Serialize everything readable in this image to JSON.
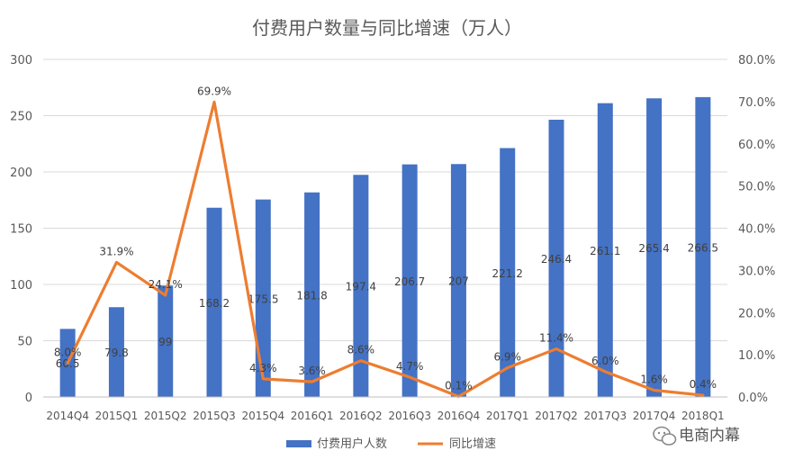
{
  "chart_data": {
    "type": "bar",
    "title": "付费用户数量与同比增速（万人）",
    "categories": [
      "2014Q4",
      "2015Q1",
      "2015Q2",
      "2015Q3",
      "2015Q4",
      "2016Q1",
      "2016Q2",
      "2016Q3",
      "2016Q4",
      "2017Q1",
      "2017Q2",
      "2017Q3",
      "2017Q4",
      "2018Q1"
    ],
    "series": [
      {
        "name": "付费用户人数",
        "type": "bar",
        "axis": "left",
        "color": "#4472C4",
        "values": [
          60.5,
          79.8,
          99,
          168.2,
          175.5,
          181.8,
          197.4,
          206.7,
          207,
          221.2,
          246.4,
          261.1,
          265.4,
          266.5
        ],
        "labels": [
          "60.5",
          "79.8",
          "99",
          "168.2",
          "175.5",
          "181.8",
          "197.4",
          "206.7",
          "207",
          "221.2",
          "246.4",
          "261.1",
          "265.4",
          "266.5"
        ]
      },
      {
        "name": "同比增速",
        "type": "line",
        "axis": "right",
        "color": "#ED7D31",
        "values": [
          8.0,
          31.9,
          24.1,
          69.9,
          4.3,
          3.6,
          8.6,
          4.7,
          0.1,
          6.9,
          11.4,
          6.0,
          1.6,
          0.4
        ],
        "labels": [
          "8.0%",
          "31.9%",
          "24.1%",
          "69.9%",
          "4.3%",
          "3.6%",
          "8.6%",
          "4.7%",
          "0.1%",
          "6.9%",
          "11.4%",
          "6.0%",
          "1.6%",
          "0.4%"
        ]
      }
    ],
    "y_left": {
      "min": 0,
      "max": 300,
      "ticks": [
        "0",
        "50",
        "100",
        "150",
        "200",
        "250",
        "300"
      ]
    },
    "y_right": {
      "min": 0,
      "max": 80,
      "ticks": [
        "0.0%",
        "10.0%",
        "20.0%",
        "30.0%",
        "40.0%",
        "50.0%",
        "60.0%",
        "70.0%",
        "80.0%"
      ]
    },
    "xlabel": "",
    "ylabel": "",
    "grid": true,
    "legend_position": "bottom",
    "watermark": "电商内幕"
  }
}
